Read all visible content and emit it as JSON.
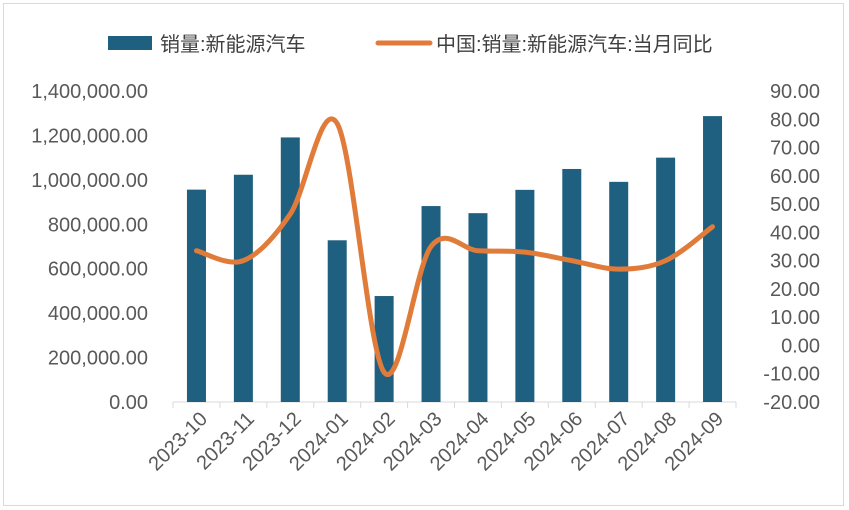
{
  "chart_data": {
    "type": "bar+line",
    "categories": [
      "2023-10",
      "2023-11",
      "2023-12",
      "2024-01",
      "2024-02",
      "2024-03",
      "2024-04",
      "2024-05",
      "2024-06",
      "2024-07",
      "2024-08",
      "2024-09"
    ],
    "series": [
      {
        "name": "销量:新能源汽车",
        "type": "bar",
        "axis": "left",
        "color": "#1f5f7f",
        "values": [
          956000,
          1023000,
          1191000,
          728000,
          477000,
          882000,
          850000,
          955000,
          1049000,
          991000,
          1100000,
          1287000
        ]
      },
      {
        "name": "中国:销量:新能源汽车:当月同比",
        "type": "line",
        "axis": "right",
        "color": "#e07b39",
        "values": [
          33.5,
          30.0,
          46.5,
          78.5,
          -9.5,
          35.0,
          33.5,
          33.0,
          30.0,
          27.0,
          30.0,
          42.0
        ]
      }
    ],
    "left_axis": {
      "ylim": [
        0,
        1400000
      ],
      "tick_labels": [
        "0.00",
        "200,000.00",
        "400,000.00",
        "600,000.00",
        "800,000.00",
        "1,000,000.00",
        "1,200,000.00",
        "1,400,000.00"
      ]
    },
    "right_axis": {
      "ylim": [
        -20,
        90
      ],
      "tick_labels": [
        "-20.00",
        "-10.00",
        "0.00",
        "10.00",
        "20.00",
        "30.00",
        "40.00",
        "50.00",
        "60.00",
        "70.00",
        "80.00",
        "90.00"
      ]
    },
    "legend_position": "top",
    "grid": false
  }
}
